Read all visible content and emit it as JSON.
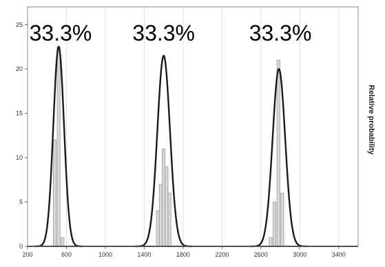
{
  "chart_data": {
    "type": "bar",
    "title": "",
    "xlabel": "",
    "ylabel": "Relative probability",
    "xlim": [
      200,
      3600
    ],
    "ylim": [
      0,
      27
    ],
    "x_ticks": [
      200,
      600,
      1000,
      1400,
      1800,
      2200,
      2600,
      3000,
      3400
    ],
    "y_ticks": [
      0,
      5,
      10,
      15,
      20,
      25
    ],
    "grid": "vertical",
    "legend": "none",
    "colors": {
      "curve": "#1a1a1a",
      "bar_fill": "#d9d9d9",
      "bar_stroke": "#999999",
      "grid": "#dcdcdc",
      "frame": "#888888"
    },
    "bar_width": 30,
    "bars": [
      {
        "x": 480,
        "y": 12
      },
      {
        "x": 520,
        "y": 22.5
      },
      {
        "x": 560,
        "y": 1
      },
      {
        "x": 1540,
        "y": 4
      },
      {
        "x": 1570,
        "y": 7
      },
      {
        "x": 1600,
        "y": 11
      },
      {
        "x": 1630,
        "y": 9
      },
      {
        "x": 1660,
        "y": 6
      },
      {
        "x": 2700,
        "y": 1
      },
      {
        "x": 2740,
        "y": 5
      },
      {
        "x": 2780,
        "y": 21
      },
      {
        "x": 2820,
        "y": 6
      }
    ],
    "curves": [
      {
        "mean": 520,
        "sd": 55,
        "peak": 22.5
      },
      {
        "mean": 1600,
        "sd": 65,
        "peak": 21.5
      },
      {
        "mean": 2785,
        "sd": 65,
        "peak": 20
      }
    ],
    "annotations": [
      {
        "text": "33.3%",
        "x": 540,
        "y": 23.2
      },
      {
        "text": "33.3%",
        "x": 1600,
        "y": 23.2
      },
      {
        "text": "33.3%",
        "x": 2800,
        "y": 23.2
      }
    ]
  }
}
